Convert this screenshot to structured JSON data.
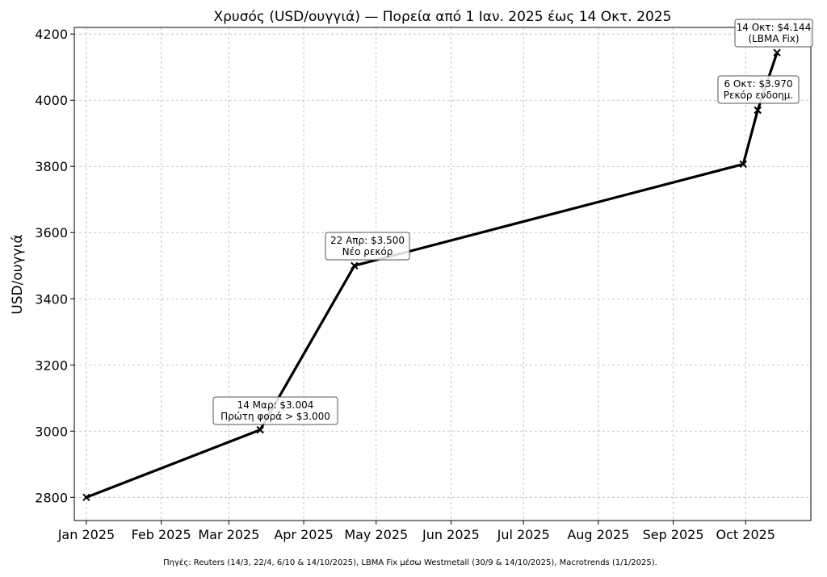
{
  "chart_data": {
    "type": "line",
    "title": "Χρυσός (USD/ουγγιά) — Πορεία από 1 Ιαν. 2025 έως 14 Οκτ. 2025",
    "xlabel": "",
    "ylabel": "USD/ουγγιά",
    "x": [
      "2025-01-01",
      "2025-03-14",
      "2025-04-22",
      "2025-09-30",
      "2025-10-06",
      "2025-10-14"
    ],
    "values": [
      2800,
      3004,
      3500,
      3807,
      3970,
      4144
    ],
    "marker": "x",
    "line_color": "#000000",
    "ylim": [
      2730,
      4220
    ],
    "yticks": [
      2800,
      3000,
      3200,
      3400,
      3600,
      3800,
      4000,
      4200
    ],
    "xticks": [
      "2025-01-01",
      "2025-02-01",
      "2025-03-01",
      "2025-04-01",
      "2025-05-01",
      "2025-06-01",
      "2025-07-01",
      "2025-08-01",
      "2025-09-01",
      "2025-10-01"
    ],
    "xtick_labels": [
      "Jan 2025",
      "Feb 2025",
      "Mar 2025",
      "Apr 2025",
      "May 2025",
      "Jun 2025",
      "Jul 2025",
      "Aug 2025",
      "Sep 2025",
      "Oct 2025"
    ],
    "grid": true,
    "annotations": [
      {
        "x": "2025-03-14",
        "y": 3004,
        "lines": [
          "14 Μαρ: $3.004",
          "Πρώτη φορά > $3.000"
        ]
      },
      {
        "x": "2025-04-22",
        "y": 3500,
        "lines": [
          "22 Απρ: $3.500",
          "Νέο ρεκόρ"
        ]
      },
      {
        "x": "2025-10-06",
        "y": 3970,
        "lines": [
          "6 Οκτ: $3.970",
          "Ρεκόρ ενδοημ."
        ]
      },
      {
        "x": "2025-10-14",
        "y": 4144,
        "lines": [
          "14 Οκτ: $4.144",
          "(LBMA Fix)"
        ]
      }
    ]
  },
  "footnote": "Πηγές: Reuters (14/3, 22/4, 6/10 & 14/10/2025), LBMA Fix μέσω Westmetall (30/9 & 14/10/2025), Macrotrends (1/1/2025)."
}
